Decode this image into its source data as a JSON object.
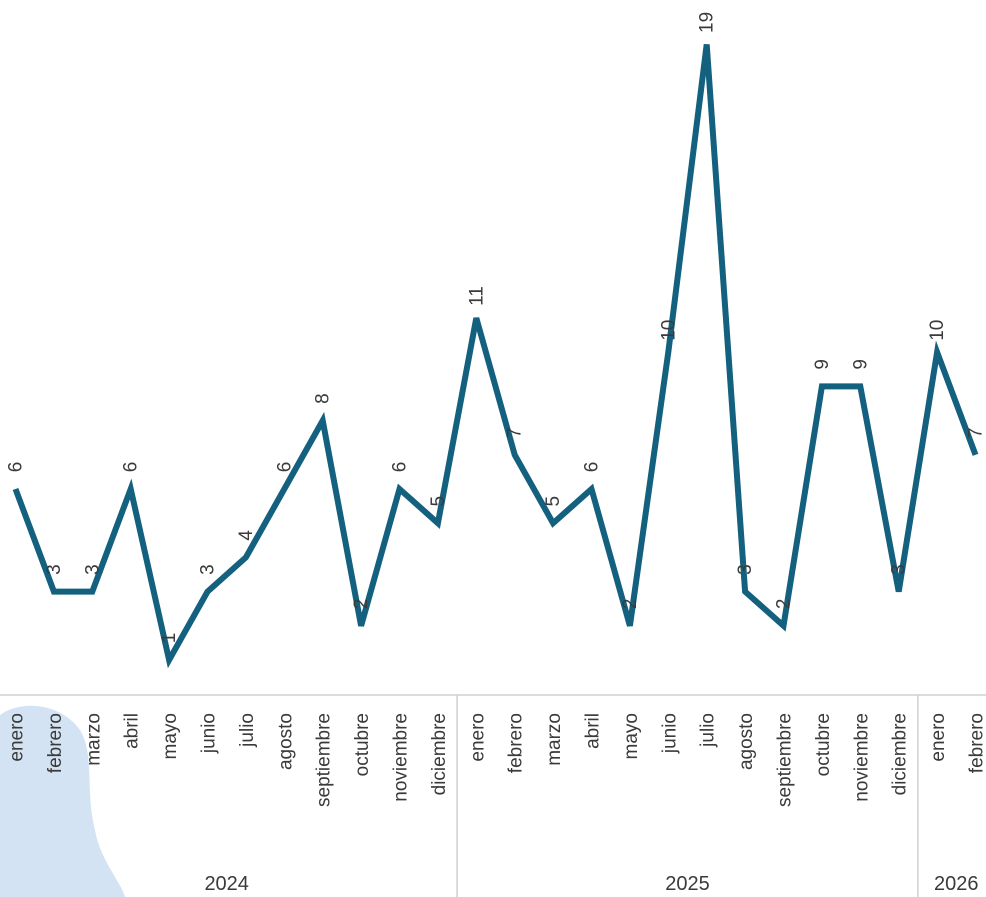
{
  "chart_data": {
    "type": "line",
    "x": [
      {
        "month": "enero",
        "year": "2024"
      },
      {
        "month": "febrero",
        "year": "2024"
      },
      {
        "month": "marzo",
        "year": "2024"
      },
      {
        "month": "abril",
        "year": "2024"
      },
      {
        "month": "mayo",
        "year": "2024"
      },
      {
        "month": "junio",
        "year": "2024"
      },
      {
        "month": "julio",
        "year": "2024"
      },
      {
        "month": "agosto",
        "year": "2024"
      },
      {
        "month": "septiembre",
        "year": "2024"
      },
      {
        "month": "octubre",
        "year": "2024"
      },
      {
        "month": "noviembre",
        "year": "2024"
      },
      {
        "month": "diciembre",
        "year": "2024"
      },
      {
        "month": "enero",
        "year": "2025"
      },
      {
        "month": "febrero",
        "year": "2025"
      },
      {
        "month": "marzo",
        "year": "2025"
      },
      {
        "month": "abril",
        "year": "2025"
      },
      {
        "month": "mayo",
        "year": "2025"
      },
      {
        "month": "junio",
        "year": "2025"
      },
      {
        "month": "julio",
        "year": "2025"
      },
      {
        "month": "agosto",
        "year": "2025"
      },
      {
        "month": "septiembre",
        "year": "2025"
      },
      {
        "month": "octubre",
        "year": "2025"
      },
      {
        "month": "noviembre",
        "year": "2025"
      },
      {
        "month": "diciembre",
        "year": "2025"
      },
      {
        "month": "enero",
        "year": "2026"
      },
      {
        "month": "febrero",
        "year": "2026"
      }
    ],
    "values": [
      6,
      3,
      3,
      6,
      1,
      3,
      4,
      6,
      8,
      2,
      6,
      5,
      11,
      7,
      5,
      6,
      2,
      10,
      19,
      3,
      2,
      9,
      9,
      3,
      10,
      7
    ],
    "years": [
      "2024",
      "2025",
      "2026"
    ],
    "title": "",
    "xlabel": "",
    "ylabel": "",
    "ylim": [
      0,
      20
    ],
    "grid": false,
    "line_color": "#14607f",
    "axis_color": "#d0d0d0",
    "label_color": "#3a3a3a",
    "watermark_color": "#c5daf0"
  }
}
